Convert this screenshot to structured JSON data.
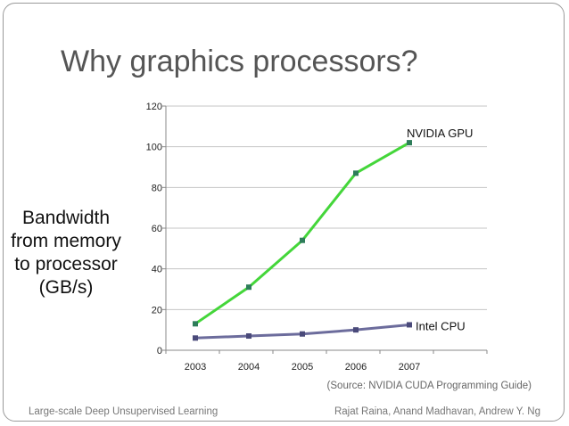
{
  "slide": {
    "title": "Why graphics processors?",
    "source": "(Source: NVIDIA CUDA Programming Guide)",
    "footer_left": "Large-scale Deep Unsupervised Learning",
    "footer_right": "Rajat Raina, Anand Madhavan, Andrew Y. Ng",
    "ylabel_lines": [
      "Bandwidth",
      "from memory",
      "to processor",
      "(GB/s)"
    ]
  },
  "chart_data": {
    "type": "line",
    "title": "",
    "xlabel": "",
    "ylabel": "Bandwidth from memory to processor (GB/s)",
    "categories": [
      "2003",
      "2004",
      "2005",
      "2006",
      "2007"
    ],
    "ylim": [
      0,
      120
    ],
    "yticks": [
      0,
      20,
      40,
      60,
      80,
      100,
      120
    ],
    "grid": true,
    "series": [
      {
        "name": "NVIDIA GPU",
        "values": [
          13,
          31,
          54,
          87,
          102
        ],
        "color": "#44d63a"
      },
      {
        "name": "Intel CPU",
        "values": [
          6,
          7,
          8,
          10,
          12.5
        ],
        "color": "#6c6c9c"
      }
    ]
  }
}
